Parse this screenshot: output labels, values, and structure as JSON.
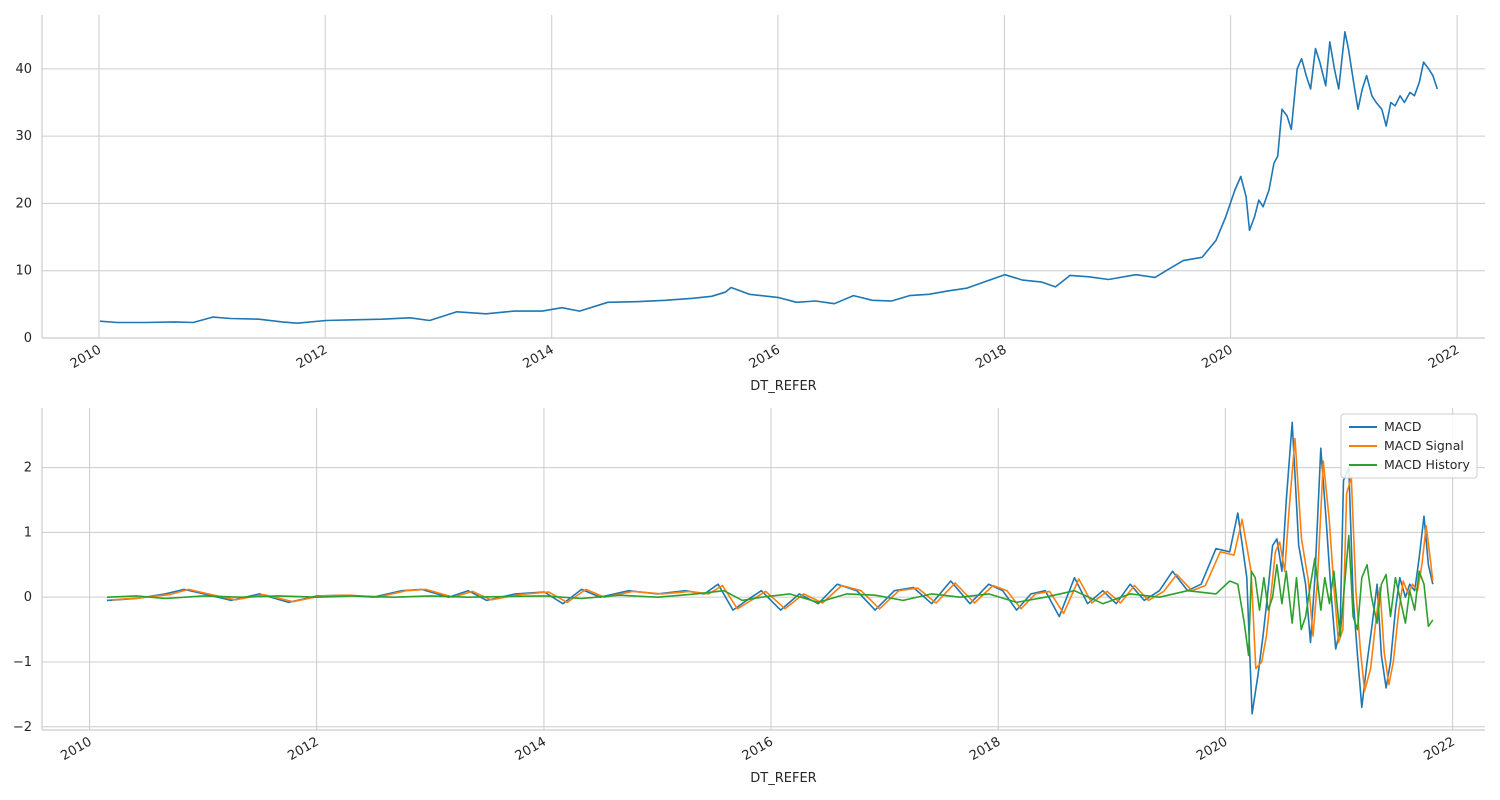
{
  "chart_data": [
    {
      "type": "line",
      "xlabel": "DT_REFER",
      "ylabel": "",
      "x_tick_labels": [
        "2010",
        "2012",
        "2014",
        "2016",
        "2018",
        "2020",
        "2022"
      ],
      "y_tick_labels": [
        "0",
        "10",
        "20",
        "30",
        "40"
      ],
      "xlim": [
        "2009-07-01",
        "2022-04-01"
      ],
      "ylim": [
        0,
        48
      ],
      "grid": true,
      "legend": null,
      "series": [
        {
          "color": "#1f77b4",
          "x": [
            "2010-01-04",
            "2010-03-01",
            "2010-06-01",
            "2010-09-01",
            "2010-11-01",
            "2011-01-03",
            "2011-03-01",
            "2011-06-01",
            "2011-08-15",
            "2011-10-03",
            "2012-01-03",
            "2012-04-02",
            "2012-07-02",
            "2012-10-01",
            "2012-12-03",
            "2013-03-01",
            "2013-06-03",
            "2013-09-02",
            "2013-12-02",
            "2014-02-03",
            "2014-04-01",
            "2014-07-01",
            "2014-10-01",
            "2015-01-02",
            "2015-04-01",
            "2015-06-01",
            "2015-07-15",
            "2015-08-03",
            "2015-10-01",
            "2016-01-04",
            "2016-03-01",
            "2016-05-02",
            "2016-07-01",
            "2016-09-01",
            "2016-11-01",
            "2017-01-02",
            "2017-03-01",
            "2017-05-02",
            "2017-07-03",
            "2017-09-01",
            "2017-11-01",
            "2018-01-02",
            "2018-03-01",
            "2018-05-02",
            "2018-06-15",
            "2018-08-01",
            "2018-10-01",
            "2018-12-03",
            "2019-03-01",
            "2019-05-02",
            "2019-06-03",
            "2019-08-01",
            "2019-10-01",
            "2019-11-15",
            "2019-12-16",
            "2020-01-15",
            "2020-02-03",
            "2020-02-20",
            "2020-03-02",
            "2020-03-18",
            "2020-04-01",
            "2020-04-15",
            "2020-05-04",
            "2020-05-20",
            "2020-06-01",
            "2020-06-15",
            "2020-07-01",
            "2020-07-15",
            "2020-08-03",
            "2020-08-17",
            "2020-09-01",
            "2020-09-15",
            "2020-10-01",
            "2020-10-15",
            "2020-11-03",
            "2020-11-16",
            "2020-12-01",
            "2020-12-15",
            "2021-01-04",
            "2021-01-15",
            "2021-02-01",
            "2021-02-15",
            "2021-03-01",
            "2021-03-15",
            "2021-04-01",
            "2021-04-15",
            "2021-05-03",
            "2021-05-17",
            "2021-06-01",
            "2021-06-15",
            "2021-07-01",
            "2021-07-15",
            "2021-08-02",
            "2021-08-16",
            "2021-09-01",
            "2021-09-15",
            "2021-10-01",
            "2021-10-15",
            "2021-10-29"
          ],
          "values": [
            2.5,
            2.3,
            2.3,
            2.4,
            2.3,
            3.1,
            2.9,
            2.8,
            2.4,
            2.2,
            2.6,
            2.7,
            2.8,
            3.0,
            2.6,
            3.9,
            3.6,
            4.0,
            4.0,
            4.5,
            4.0,
            5.3,
            5.4,
            5.6,
            5.9,
            6.2,
            6.8,
            7.5,
            6.5,
            6.0,
            5.3,
            5.5,
            5.1,
            6.3,
            5.6,
            5.5,
            6.3,
            6.5,
            7.0,
            7.4,
            8.4,
            9.4,
            8.6,
            8.3,
            7.6,
            9.3,
            9.1,
            8.7,
            9.4,
            9.0,
            9.9,
            11.5,
            12.0,
            14.5,
            18.0,
            22.0,
            24.0,
            21.0,
            16.0,
            18.0,
            20.5,
            19.5,
            22.0,
            26.0,
            27.0,
            34.0,
            33.0,
            31.0,
            40.0,
            41.5,
            39.0,
            37.0,
            43.0,
            41.0,
            37.5,
            44.0,
            40.0,
            37.0,
            45.5,
            43.0,
            38.0,
            34.0,
            37.0,
            39.0,
            36.0,
            35.0,
            34.0,
            31.5,
            35.0,
            34.5,
            36.0,
            35.0,
            36.5,
            36.0,
            38.0,
            41.0,
            40.0,
            39.0,
            37.0
          ]
        }
      ]
    },
    {
      "type": "line",
      "xlabel": "DT_REFER",
      "ylabel": "",
      "x_tick_labels": [
        "2010",
        "2012",
        "2014",
        "2016",
        "2018",
        "2020",
        "2022"
      ],
      "y_tick_labels": [
        "−2",
        "−1",
        "0",
        "1",
        "2"
      ],
      "xlim": [
        "2009-08-01",
        "2022-04-15"
      ],
      "ylim": [
        -2.05,
        2.92
      ],
      "grid": true,
      "legend": "top-right",
      "series": [
        {
          "name": "MACD",
          "color": "#1f77b4",
          "x": [
            "2010-02-26",
            "2010-06-01",
            "2010-09-01",
            "2010-11-01",
            "2011-01-03",
            "2011-04-01",
            "2011-07-01",
            "2011-10-03",
            "2012-01-03",
            "2012-04-02",
            "2012-07-02",
            "2012-10-01",
            "2012-12-03",
            "2013-03-01",
            "2013-05-02",
            "2013-07-01",
            "2013-10-01",
            "2014-01-02",
            "2014-03-03",
            "2014-05-02",
            "2014-07-01",
            "2014-10-01",
            "2015-01-02",
            "2015-04-01",
            "2015-06-01",
            "2015-07-15",
            "2015-09-01",
            "2015-10-15",
            "2015-12-01",
            "2016-02-01",
            "2016-04-01",
            "2016-06-01",
            "2016-08-01",
            "2016-10-03",
            "2016-12-01",
            "2017-02-01",
            "2017-04-03",
            "2017-06-01",
            "2017-08-01",
            "2017-10-02",
            "2017-12-01",
            "2018-01-15",
            "2018-03-01",
            "2018-04-16",
            "2018-06-01",
            "2018-07-16",
            "2018-09-03",
            "2018-10-15",
            "2018-12-03",
            "2019-01-15",
            "2019-03-01",
            "2019-04-15",
            "2019-06-03",
            "2019-07-15",
            "2019-09-02",
            "2019-10-15",
            "2019-12-02",
            "2020-01-15",
            "2020-02-10",
            "2020-03-10",
            "2020-03-27",
            "2020-04-15",
            "2020-05-01",
            "2020-05-15",
            "2020-06-01",
            "2020-06-15",
            "2020-07-01",
            "2020-07-15",
            "2020-08-03",
            "2020-08-24",
            "2020-09-15",
            "2020-10-01",
            "2020-10-15",
            "2020-11-03",
            "2020-11-20",
            "2020-12-07",
            "2020-12-21",
            "2021-01-04",
            "2021-01-15",
            "2021-02-01",
            "2021-02-15",
            "2021-03-01",
            "2021-03-15",
            "2021-04-01",
            "2021-04-15",
            "2021-05-03",
            "2021-05-17",
            "2021-06-01",
            "2021-06-15",
            "2021-07-01",
            "2021-07-15",
            "2021-08-02",
            "2021-08-16",
            "2021-09-01",
            "2021-09-15",
            "2021-10-01",
            "2021-10-15",
            "2021-10-29"
          ],
          "values": [
            -0.05,
            -0.02,
            0.05,
            0.12,
            0.05,
            -0.05,
            0.05,
            -0.08,
            0.02,
            0.03,
            0.0,
            0.1,
            0.12,
            0.0,
            0.1,
            -0.05,
            0.05,
            0.08,
            -0.1,
            0.12,
            0.0,
            0.1,
            0.05,
            0.1,
            0.05,
            0.2,
            -0.2,
            -0.05,
            0.1,
            -0.2,
            0.05,
            -0.1,
            0.2,
            0.1,
            -0.2,
            0.1,
            0.15,
            -0.1,
            0.25,
            -0.1,
            0.2,
            0.1,
            -0.2,
            0.05,
            0.1,
            -0.3,
            0.3,
            -0.1,
            0.1,
            -0.1,
            0.2,
            -0.05,
            0.1,
            0.4,
            0.1,
            0.2,
            0.75,
            0.7,
            1.3,
            0.3,
            -1.8,
            -1.2,
            -0.6,
            0.0,
            0.8,
            0.9,
            0.4,
            1.5,
            2.7,
            0.8,
            0.2,
            -0.7,
            0.3,
            2.3,
            1.2,
            0.0,
            -0.8,
            -0.5,
            1.8,
            2.0,
            0.0,
            -0.9,
            -1.7,
            -1.0,
            -0.5,
            0.2,
            -0.9,
            -1.4,
            -1.0,
            -0.2,
            0.3,
            0.0,
            0.2,
            0.1,
            0.6,
            1.25,
            0.5,
            0.2
          ]
        },
        {
          "name": "MACD Signal",
          "color": "#ff7f0e",
          "x": [
            "2010-03-15",
            "2010-06-15",
            "2010-09-15",
            "2010-11-15",
            "2011-01-17",
            "2011-04-15",
            "2011-07-15",
            "2011-10-17",
            "2012-01-16",
            "2012-04-16",
            "2012-07-16",
            "2012-10-15",
            "2012-12-17",
            "2013-03-15",
            "2013-05-16",
            "2013-07-15",
            "2013-10-15",
            "2014-01-16",
            "2014-03-17",
            "2014-05-16",
            "2014-07-15",
            "2014-10-15",
            "2015-01-16",
            "2015-04-15",
            "2015-06-15",
            "2015-07-29",
            "2015-09-15",
            "2015-10-29",
            "2015-12-15",
            "2016-02-15",
            "2016-04-15",
            "2016-06-15",
            "2016-08-15",
            "2016-10-17",
            "2016-12-15",
            "2017-02-15",
            "2017-04-17",
            "2017-06-15",
            "2017-08-15",
            "2017-10-16",
            "2017-12-15",
            "2018-01-29",
            "2018-03-15",
            "2018-04-30",
            "2018-06-15",
            "2018-07-30",
            "2018-09-17",
            "2018-10-29",
            "2018-12-17",
            "2019-01-29",
            "2019-03-15",
            "2019-04-29",
            "2019-06-17",
            "2019-07-29",
            "2019-09-16",
            "2019-10-29",
            "2019-12-16",
            "2020-01-29",
            "2020-02-24",
            "2020-03-24",
            "2020-04-08",
            "2020-04-27",
            "2020-05-12",
            "2020-05-26",
            "2020-06-10",
            "2020-06-24",
            "2020-07-10",
            "2020-07-24",
            "2020-08-12",
            "2020-09-02",
            "2020-09-24",
            "2020-10-09",
            "2020-10-23",
            "2020-11-11",
            "2020-11-30",
            "2020-12-16",
            "2020-12-30",
            "2021-01-13",
            "2021-01-25",
            "2021-02-09",
            "2021-02-24",
            "2021-03-10",
            "2021-03-24",
            "2021-04-12",
            "2021-04-26",
            "2021-05-12",
            "2021-05-26",
            "2021-06-10",
            "2021-06-24",
            "2021-07-12",
            "2021-07-26",
            "2021-08-11",
            "2021-08-25",
            "2021-09-10",
            "2021-09-24",
            "2021-10-08",
            "2021-10-22",
            "2021-10-29"
          ],
          "values": [
            -0.04,
            -0.01,
            0.04,
            0.12,
            0.05,
            -0.04,
            0.04,
            -0.07,
            0.02,
            0.03,
            0.0,
            0.1,
            0.12,
            0.0,
            0.09,
            -0.04,
            0.04,
            0.08,
            -0.08,
            0.12,
            0.0,
            0.09,
            0.05,
            0.09,
            0.05,
            0.18,
            -0.18,
            -0.05,
            0.09,
            -0.18,
            0.05,
            -0.09,
            0.18,
            0.1,
            -0.18,
            0.1,
            0.14,
            -0.09,
            0.22,
            -0.09,
            0.18,
            0.1,
            -0.18,
            0.05,
            0.09,
            -0.25,
            0.28,
            -0.09,
            0.09,
            -0.09,
            0.18,
            -0.05,
            0.09,
            0.35,
            0.1,
            0.18,
            0.7,
            0.65,
            1.2,
            0.4,
            -1.1,
            -1.0,
            -0.6,
            0.0,
            0.7,
            0.85,
            0.4,
            1.35,
            2.45,
            0.9,
            0.25,
            -0.6,
            0.25,
            2.1,
            1.2,
            0.1,
            -0.7,
            -0.5,
            1.6,
            1.85,
            0.1,
            -0.8,
            -1.45,
            -1.1,
            -0.5,
            0.15,
            -0.85,
            -1.35,
            -1.0,
            -0.2,
            0.25,
            0.05,
            0.2,
            0.1,
            0.5,
            1.1,
            0.55,
            0.25
          ]
        },
        {
          "name": "MACD History",
          "color": "#2ca02c",
          "x": [
            "2010-02-26",
            "2010-06-01",
            "2010-09-01",
            "2011-01-03",
            "2011-05-02",
            "2011-09-01",
            "2012-01-03",
            "2012-05-02",
            "2012-09-03",
            "2013-01-02",
            "2013-05-02",
            "2013-09-02",
            "2014-01-02",
            "2014-05-02",
            "2014-09-01",
            "2015-01-02",
            "2015-05-04",
            "2015-08-03",
            "2015-10-01",
            "2015-12-01",
            "2016-03-01",
            "2016-06-01",
            "2016-09-01",
            "2016-12-01",
            "2017-03-01",
            "2017-06-01",
            "2017-09-01",
            "2017-12-01",
            "2018-03-01",
            "2018-06-01",
            "2018-09-03",
            "2018-12-03",
            "2019-03-01",
            "2019-06-03",
            "2019-09-02",
            "2019-12-02",
            "2020-01-15",
            "2020-02-10",
            "2020-03-02",
            "2020-03-16",
            "2020-03-25",
            "2020-04-06",
            "2020-04-20",
            "2020-05-04",
            "2020-05-18",
            "2020-06-01",
            "2020-06-15",
            "2020-07-01",
            "2020-07-15",
            "2020-08-03",
            "2020-08-17",
            "2020-09-01",
            "2020-09-15",
            "2020-10-01",
            "2020-10-15",
            "2020-11-03",
            "2020-11-16",
            "2020-12-01",
            "2020-12-15",
            "2021-01-04",
            "2021-01-15",
            "2021-02-01",
            "2021-02-15",
            "2021-03-01",
            "2021-03-15",
            "2021-04-01",
            "2021-04-15",
            "2021-05-03",
            "2021-05-17",
            "2021-06-01",
            "2021-06-15",
            "2021-07-01",
            "2021-07-15",
            "2021-08-02",
            "2021-08-16",
            "2021-09-01",
            "2021-09-15",
            "2021-10-01",
            "2021-10-15",
            "2021-10-29"
          ],
          "values": [
            0.0,
            0.02,
            -0.02,
            0.02,
            0.0,
            0.02,
            0.0,
            0.02,
            0.0,
            0.02,
            0.0,
            0.01,
            0.02,
            -0.02,
            0.03,
            0.0,
            0.05,
            0.1,
            -0.05,
            0.0,
            0.05,
            -0.08,
            0.05,
            0.03,
            -0.05,
            0.05,
            0.0,
            0.05,
            -0.08,
            0.0,
            0.1,
            -0.1,
            0.05,
            0.0,
            0.1,
            0.05,
            0.25,
            0.2,
            -0.4,
            -0.9,
            0.4,
            0.3,
            -0.2,
            0.3,
            -0.2,
            0.0,
            0.5,
            -0.1,
            0.4,
            -0.4,
            0.3,
            -0.5,
            -0.3,
            0.2,
            0.6,
            -0.2,
            0.3,
            -0.1,
            0.4,
            -0.6,
            0.0,
            0.95,
            -0.3,
            -0.5,
            0.3,
            0.5,
            0.0,
            -0.4,
            0.2,
            0.35,
            -0.3,
            0.3,
            0.0,
            -0.4,
            0.1,
            -0.2,
            0.4,
            0.2,
            -0.45,
            -0.35
          ]
        }
      ]
    }
  ]
}
